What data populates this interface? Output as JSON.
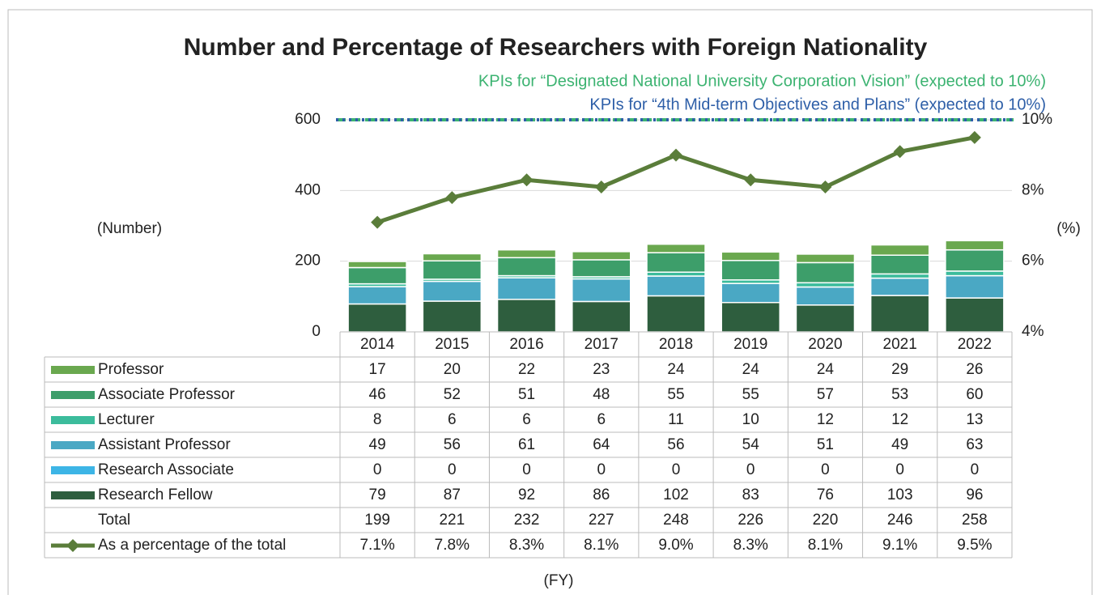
{
  "chart_data": {
    "type": "stacked_bar_line_table",
    "title": "Number and Percentage of Researchers with Foreign Nationality",
    "y_label": "(Number)",
    "y2_label": "(%)",
    "x_label": "(FY)",
    "categories": [
      "2014",
      "2015",
      "2016",
      "2017",
      "2018",
      "2019",
      "2020",
      "2021",
      "2022"
    ],
    "ylim": [
      0,
      600
    ],
    "yticks": [
      0,
      200,
      400,
      600
    ],
    "y2lim": [
      4,
      10
    ],
    "y2ticks": [
      {
        "value": 4,
        "label": "4%"
      },
      {
        "value": 6,
        "label": "6%"
      },
      {
        "value": 8,
        "label": "8%"
      },
      {
        "value": 10,
        "label": "10%"
      }
    ],
    "series": [
      {
        "name": "Professor",
        "color": "#6aa84f",
        "values": [
          17,
          20,
          22,
          23,
          24,
          24,
          24,
          29,
          26
        ]
      },
      {
        "name": "Associate Professor",
        "color": "#3d9e6a",
        "values": [
          46,
          52,
          51,
          48,
          55,
          55,
          57,
          53,
          60
        ]
      },
      {
        "name": "Lecturer",
        "color": "#3cbc9c",
        "values": [
          8,
          6,
          6,
          6,
          11,
          10,
          12,
          12,
          13
        ]
      },
      {
        "name": "Assistant Professor",
        "color": "#4aa8c4",
        "values": [
          49,
          56,
          61,
          64,
          56,
          54,
          51,
          49,
          63
        ]
      },
      {
        "name": "Research Associate",
        "color": "#3db5e6",
        "values": [
          0,
          0,
          0,
          0,
          0,
          0,
          0,
          0,
          0
        ]
      },
      {
        "name": "Research Fellow",
        "color": "#2e5e3e",
        "values": [
          79,
          87,
          92,
          86,
          102,
          83,
          76,
          103,
          96
        ]
      }
    ],
    "total": {
      "name": "Total",
      "values": [
        199,
        221,
        232,
        227,
        248,
        226,
        220,
        246,
        258
      ]
    },
    "line": {
      "name": "As a percentage of the total",
      "color": "#5a7d3a",
      "axis": "y2",
      "values": [
        7.1,
        7.8,
        8.3,
        8.1,
        9.0,
        8.3,
        8.1,
        9.1,
        9.5
      ],
      "value_labels": [
        "7.1%",
        "7.8%",
        "8.3%",
        "8.1%",
        "9.0%",
        "8.3%",
        "8.1%",
        "9.1%",
        "9.5%"
      ]
    },
    "reference_lines": [
      {
        "label": "KPIs for “Designated National University Corporation Vision” (expected to 10%)",
        "value": 10,
        "axis": "y2",
        "color": "#3cb371"
      },
      {
        "label": "KPIs for “4th Mid-term Objectives and Plans” (expected to 10%)",
        "value": 10,
        "axis": "y2",
        "color": "#2e5fa8"
      }
    ]
  }
}
